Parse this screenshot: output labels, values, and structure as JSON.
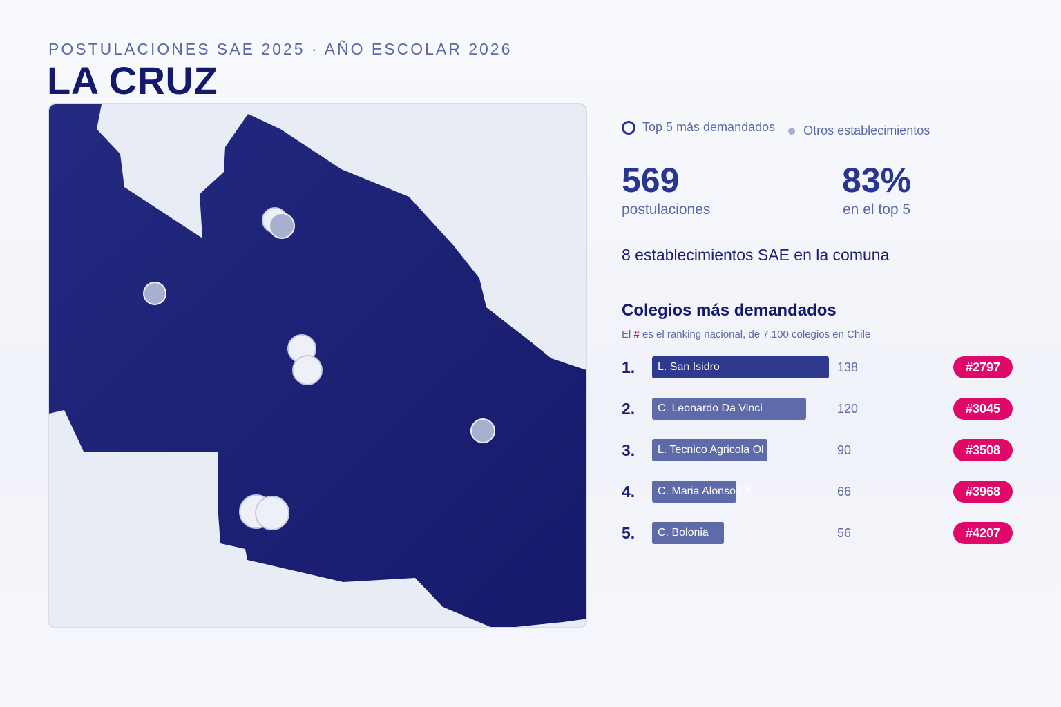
{
  "header": {
    "eyebrow": "POSTULACIONES SAE 2025 · AÑO ESCOLAR 2026",
    "title": "LA CRUZ"
  },
  "legend": {
    "top5_label": "Top 5 más demandados",
    "others_label": "Otros establecimientos"
  },
  "stats": {
    "applications_value": "569",
    "applications_label": "postulaciones",
    "top5_share_value": "83%",
    "top5_share_label": "en el top 5"
  },
  "establishments_text": "8 establecimientos SAE en la comuna",
  "ranking": {
    "title": "Colegios más demandados",
    "note_prefix": "El",
    "note_hash": "#",
    "note_suffix": "es el ranking nacional, de 7.100 colegios en Chile",
    "max_value": 138,
    "items": [
      {
        "rank": "1.",
        "name": "L. San Isidro",
        "value": 138,
        "value_text": "138",
        "national_rank": "#2797"
      },
      {
        "rank": "2.",
        "name": "C. Leonardo Da Vinci",
        "value": 120,
        "value_text": "120",
        "national_rank": "#3045"
      },
      {
        "rank": "3.",
        "name": "L. Tecnico Agricola Ol",
        "value": 90,
        "value_text": "90",
        "national_rank": "#3508"
      },
      {
        "rank": "4.",
        "name": "C. Maria Alonso Chacon",
        "value": 66,
        "value_text": "66",
        "national_rank": "#3968"
      },
      {
        "rank": "5.",
        "name": "C. Bolonia",
        "value": 56,
        "value_text": "56",
        "national_rank": "#4207"
      }
    ]
  },
  "colors": {
    "map_fill": "#1b2172",
    "map_background": "#e8ecf5",
    "bar_first": "#2f3a8f",
    "bar_other": "#5f6aa8",
    "badge": "#e0096a",
    "marker_top5": "#eef0f8",
    "marker_other": "#a9b0cf"
  }
}
